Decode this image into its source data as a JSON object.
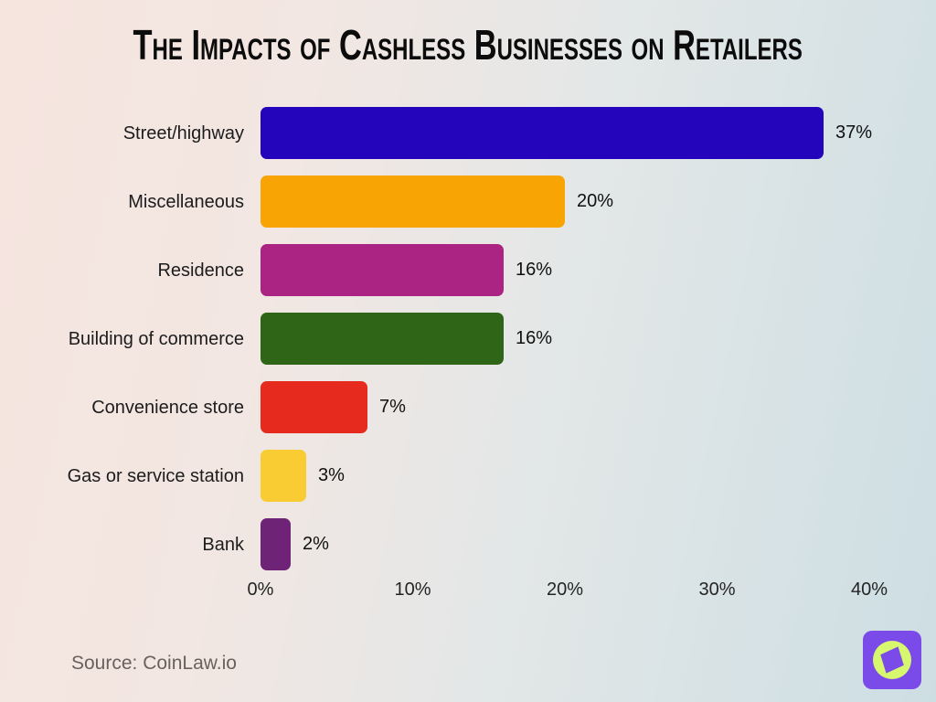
{
  "title": "The Impacts of Cashless Businesses on Retailers",
  "source_label": "Source: CoinLaw.io",
  "chart_data": {
    "type": "bar",
    "orientation": "horizontal",
    "title": "The Impacts of Cashless Businesses on Retailers",
    "categories": [
      "Street/highway",
      "Miscellaneous",
      "Residence",
      "Building of commerce",
      "Convenience store",
      "Gas or service station",
      "Bank"
    ],
    "values": [
      37,
      20,
      16,
      16,
      7,
      3,
      2
    ],
    "value_labels": [
      "37%",
      "20%",
      "16%",
      "16%",
      "7%",
      "3%",
      "2%"
    ],
    "bar_colors": [
      "#2505bc",
      "#f9a405",
      "#ab2483",
      "#2f6517",
      "#e62b1e",
      "#f9cc34",
      "#6e2377"
    ],
    "x_ticks": [
      "0%",
      "10%",
      "20%",
      "30%",
      "40%"
    ],
    "xlim": [
      0,
      40
    ],
    "grid": false,
    "legend": "none"
  },
  "logo": {
    "name": "coinlaw-compass-logo",
    "square_color": "#7b4be9",
    "circle_color": "#d7f76e"
  }
}
